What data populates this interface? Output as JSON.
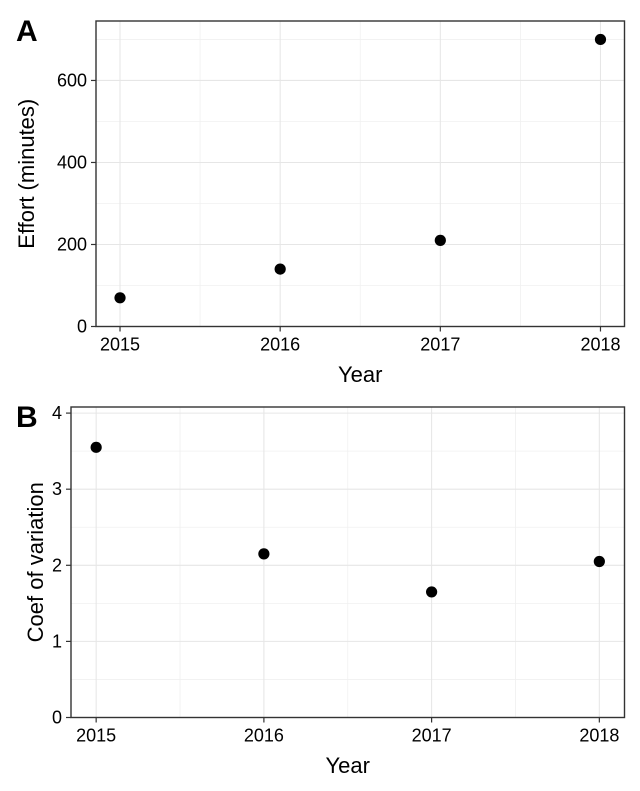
{
  "figure": {
    "background": "#ffffff",
    "panel_labels": [
      "A",
      "B"
    ]
  },
  "style": {
    "panel_border_color": "#333333",
    "tick_color": "#333333",
    "major_grid_color": "#e6e6e6",
    "minor_grid_color": "#f0f0f0",
    "point_color": "#000000",
    "text_color": "#000000"
  },
  "chart_data": [
    {
      "type": "scatter",
      "panel_label": "A",
      "title": "",
      "xlabel": "Year",
      "ylabel": "Effort (minutes)",
      "x": [
        2015,
        2016,
        2017,
        2018
      ],
      "y": [
        70,
        140,
        210,
        700
      ],
      "x_tick_labels": [
        "2015",
        "2016",
        "2017",
        "2018"
      ],
      "x_ticks": [
        2015,
        2016,
        2017,
        2018
      ],
      "x_minor": [
        2015.5,
        2016.5,
        2017.5
      ],
      "y_ticks": [
        0,
        200,
        400,
        600
      ],
      "y_minor": [
        100,
        300,
        500,
        700
      ],
      "xlim": [
        2014.85,
        2018.15
      ],
      "ylim": [
        0,
        745
      ],
      "grid": "major+minor",
      "legend": "none"
    },
    {
      "type": "scatter",
      "panel_label": "B",
      "title": "",
      "xlabel": "Year",
      "ylabel": "Coef of variation",
      "x": [
        2015,
        2016,
        2017,
        2018
      ],
      "y": [
        3.55,
        2.15,
        1.65,
        2.05
      ],
      "x_tick_labels": [
        "2015",
        "2016",
        "2017",
        "2018"
      ],
      "x_ticks": [
        2015,
        2016,
        2017,
        2018
      ],
      "x_minor": [
        2015.5,
        2016.5,
        2017.5
      ],
      "y_ticks": [
        0,
        1,
        2,
        3,
        4
      ],
      "y_minor": [
        0.5,
        1.5,
        2.5,
        3.5
      ],
      "xlim": [
        2014.85,
        2018.15
      ],
      "ylim": [
        0,
        4.08
      ],
      "grid": "major+minor",
      "legend": "none"
    }
  ]
}
